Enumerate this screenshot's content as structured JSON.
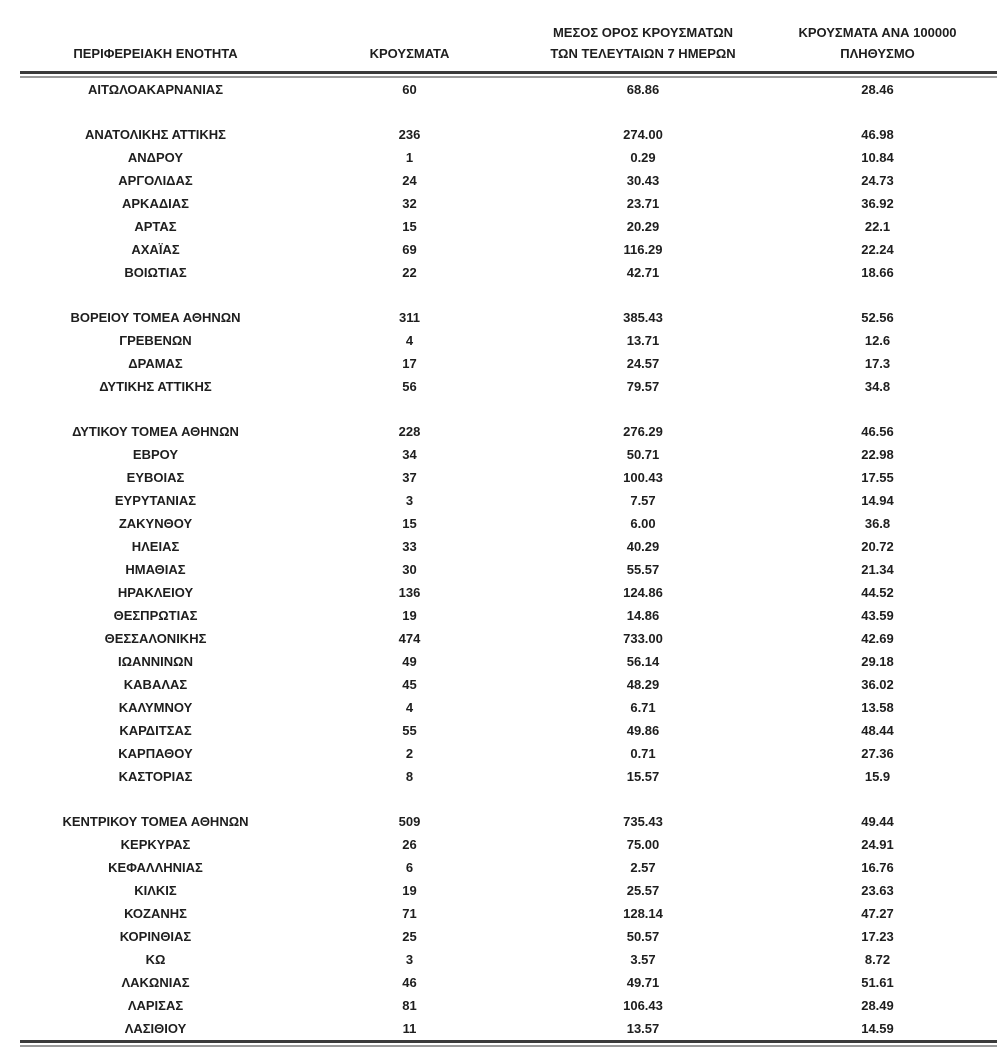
{
  "colors": {
    "background": "#ffffff",
    "text": "#1e1e1e",
    "rule_dark": "#3a3a3a",
    "rule_light": "#9a9a9a"
  },
  "table": {
    "headers": [
      {
        "line1": "",
        "line2": "ΠΕΡΙΦΕΡΕΙΑΚΗ ΕΝΟΤΗΤΑ"
      },
      {
        "line1": "",
        "line2": "ΚΡΟΥΣΜΑΤΑ"
      },
      {
        "line1": "ΜΕΣΟΣ ΟΡΟΣ ΚΡΟΥΣΜΑΤΩΝ",
        "line2": "ΤΩΝ ΤΕΛΕΥΤΑΙΩΝ 7 ΗΜΕΡΩΝ"
      },
      {
        "line1": "ΚΡΟΥΣΜΑΤΑ ΑΝΑ 100000",
        "line2": "ΠΛΗΘΥΣΜΟ"
      }
    ],
    "groups": [
      {
        "rows": [
          {
            "region": "ΑΙΤΩΛΟΑΚΑΡΝΑΝΙΑΣ",
            "cases": "60",
            "avg_7day": "68.86",
            "per_100k": "28.46"
          }
        ]
      },
      {
        "rows": [
          {
            "region": "ΑΝΑΤΟΛΙΚΗΣ ΑΤΤΙΚΗΣ",
            "cases": "236",
            "avg_7day": "274.00",
            "per_100k": "46.98"
          },
          {
            "region": "ΑΝΔΡΟΥ",
            "cases": "1",
            "avg_7day": "0.29",
            "per_100k": "10.84"
          },
          {
            "region": "ΑΡΓΟΛΙΔΑΣ",
            "cases": "24",
            "avg_7day": "30.43",
            "per_100k": "24.73"
          },
          {
            "region": "ΑΡΚΑΔΙΑΣ",
            "cases": "32",
            "avg_7day": "23.71",
            "per_100k": "36.92"
          },
          {
            "region": "ΑΡΤΑΣ",
            "cases": "15",
            "avg_7day": "20.29",
            "per_100k": "22.1"
          },
          {
            "region": "ΑΧΑΪΑΣ",
            "cases": "69",
            "avg_7day": "116.29",
            "per_100k": "22.24"
          },
          {
            "region": "ΒΟΙΩΤΙΑΣ",
            "cases": "22",
            "avg_7day": "42.71",
            "per_100k": "18.66"
          }
        ]
      },
      {
        "rows": [
          {
            "region": "ΒΟΡΕΙΟΥ ΤΟΜΕΑ ΑΘΗΝΩΝ",
            "cases": "311",
            "avg_7day": "385.43",
            "per_100k": "52.56"
          },
          {
            "region": "ΓΡΕΒΕΝΩΝ",
            "cases": "4",
            "avg_7day": "13.71",
            "per_100k": "12.6"
          },
          {
            "region": "ΔΡΑΜΑΣ",
            "cases": "17",
            "avg_7day": "24.57",
            "per_100k": "17.3"
          },
          {
            "region": "ΔΥΤΙΚΗΣ ΑΤΤΙΚΗΣ",
            "cases": "56",
            "avg_7day": "79.57",
            "per_100k": "34.8"
          }
        ]
      },
      {
        "rows": [
          {
            "region": "ΔΥΤΙΚΟΥ ΤΟΜΕΑ ΑΘΗΝΩΝ",
            "cases": "228",
            "avg_7day": "276.29",
            "per_100k": "46.56"
          },
          {
            "region": "ΕΒΡΟΥ",
            "cases": "34",
            "avg_7day": "50.71",
            "per_100k": "22.98"
          },
          {
            "region": "ΕΥΒΟΙΑΣ",
            "cases": "37",
            "avg_7day": "100.43",
            "per_100k": "17.55"
          },
          {
            "region": "ΕΥΡΥΤΑΝΙΑΣ",
            "cases": "3",
            "avg_7day": "7.57",
            "per_100k": "14.94"
          },
          {
            "region": "ΖΑΚΥΝΘΟΥ",
            "cases": "15",
            "avg_7day": "6.00",
            "per_100k": "36.8"
          },
          {
            "region": "ΗΛΕΙΑΣ",
            "cases": "33",
            "avg_7day": "40.29",
            "per_100k": "20.72"
          },
          {
            "region": "ΗΜΑΘΙΑΣ",
            "cases": "30",
            "avg_7day": "55.57",
            "per_100k": "21.34"
          },
          {
            "region": "ΗΡΑΚΛΕΙΟΥ",
            "cases": "136",
            "avg_7day": "124.86",
            "per_100k": "44.52"
          },
          {
            "region": "ΘΕΣΠΡΩΤΙΑΣ",
            "cases": "19",
            "avg_7day": "14.86",
            "per_100k": "43.59"
          },
          {
            "region": "ΘΕΣΣΑΛΟΝΙΚΗΣ",
            "cases": "474",
            "avg_7day": "733.00",
            "per_100k": "42.69"
          },
          {
            "region": "ΙΩΑΝΝΙΝΩΝ",
            "cases": "49",
            "avg_7day": "56.14",
            "per_100k": "29.18"
          },
          {
            "region": "ΚΑΒΑΛΑΣ",
            "cases": "45",
            "avg_7day": "48.29",
            "per_100k": "36.02"
          },
          {
            "region": "ΚΑΛΥΜΝΟΥ",
            "cases": "4",
            "avg_7day": "6.71",
            "per_100k": "13.58"
          },
          {
            "region": "ΚΑΡΔΙΤΣΑΣ",
            "cases": "55",
            "avg_7day": "49.86",
            "per_100k": "48.44"
          },
          {
            "region": "ΚΑΡΠΑΘΟΥ",
            "cases": "2",
            "avg_7day": "0.71",
            "per_100k": "27.36"
          },
          {
            "region": "ΚΑΣΤΟΡΙΑΣ",
            "cases": "8",
            "avg_7day": "15.57",
            "per_100k": "15.9"
          }
        ]
      },
      {
        "rows": [
          {
            "region": "ΚΕΝΤΡΙΚΟΥ ΤΟΜΕΑ ΑΘΗΝΩΝ",
            "cases": "509",
            "avg_7day": "735.43",
            "per_100k": "49.44"
          },
          {
            "region": "ΚΕΡΚΥΡΑΣ",
            "cases": "26",
            "avg_7day": "75.00",
            "per_100k": "24.91"
          },
          {
            "region": "ΚΕΦΑΛΛΗΝΙΑΣ",
            "cases": "6",
            "avg_7day": "2.57",
            "per_100k": "16.76"
          },
          {
            "region": "ΚΙΛΚΙΣ",
            "cases": "19",
            "avg_7day": "25.57",
            "per_100k": "23.63"
          },
          {
            "region": "ΚΟΖΑΝΗΣ",
            "cases": "71",
            "avg_7day": "128.14",
            "per_100k": "47.27"
          },
          {
            "region": "ΚΟΡΙΝΘΙΑΣ",
            "cases": "25",
            "avg_7day": "50.57",
            "per_100k": "17.23"
          },
          {
            "region": "ΚΩ",
            "cases": "3",
            "avg_7day": "3.57",
            "per_100k": "8.72"
          },
          {
            "region": "ΛΑΚΩΝΙΑΣ",
            "cases": "46",
            "avg_7day": "49.71",
            "per_100k": "51.61"
          },
          {
            "region": "ΛΑΡΙΣΑΣ",
            "cases": "81",
            "avg_7day": "106.43",
            "per_100k": "28.49"
          },
          {
            "region": "ΛΑΣΙΘΙΟΥ",
            "cases": "11",
            "avg_7day": "13.57",
            "per_100k": "14.59"
          }
        ]
      }
    ]
  }
}
